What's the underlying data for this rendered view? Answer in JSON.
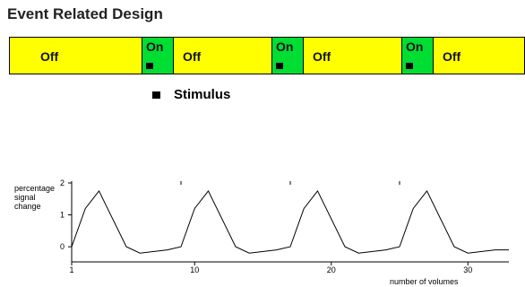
{
  "title": "Event Related Design",
  "colors": {
    "off": "#ffff00",
    "on": "#00dd33",
    "border": "#000000",
    "line": "#000000"
  },
  "timeline": {
    "segments": [
      {
        "label": "Off",
        "state": "off",
        "stimulus": false
      },
      {
        "label": "On",
        "state": "on",
        "stimulus": true
      },
      {
        "label": "Off",
        "state": "off",
        "stimulus": false
      },
      {
        "label": "On",
        "state": "on",
        "stimulus": true
      },
      {
        "label": "Off",
        "state": "off",
        "stimulus": false
      },
      {
        "label": "On",
        "state": "on",
        "stimulus": true
      },
      {
        "label": "Off",
        "state": "off",
        "stimulus": false
      }
    ]
  },
  "legend": {
    "label": "Stimulus"
  },
  "chart_data": {
    "type": "line",
    "ylabel_lines": [
      "percentage",
      "signal",
      "change"
    ],
    "xlabel": "number of volumes",
    "xlim": [
      1,
      33
    ],
    "ylim": [
      -0.25,
      2
    ],
    "x_ticks": [
      1,
      10,
      20,
      30
    ],
    "y_ticks": [
      0,
      1,
      2
    ],
    "series": [
      {
        "x": [
          1,
          2,
          3,
          5,
          6,
          8,
          9,
          10,
          11,
          13,
          14,
          16,
          17,
          18,
          19,
          21,
          22,
          24,
          25,
          26,
          27,
          29,
          30,
          32,
          33
        ],
        "y": [
          0,
          1.2,
          1.75,
          0,
          -0.2,
          -0.1,
          0,
          1.2,
          1.75,
          0,
          -0.2,
          -0.1,
          0,
          1.2,
          1.75,
          0,
          -0.2,
          -0.1,
          0,
          1.2,
          1.75,
          0,
          -0.2,
          -0.1,
          -0.1
        ]
      }
    ]
  }
}
